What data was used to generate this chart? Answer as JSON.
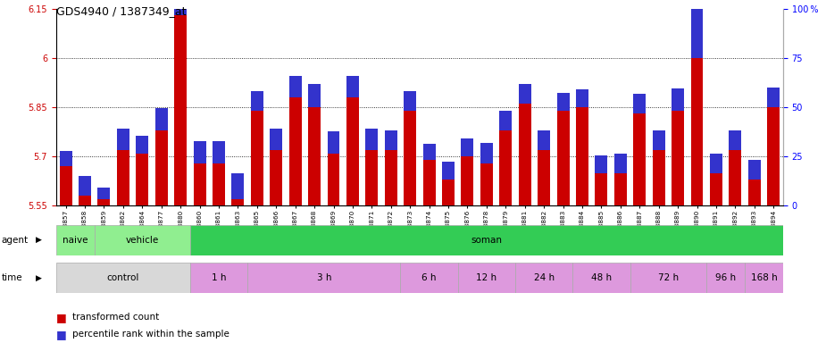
{
  "title": "GDS4940 / 1387349_at",
  "samples": [
    "GSM338857",
    "GSM338858",
    "GSM338859",
    "GSM338862",
    "GSM338864",
    "GSM338877",
    "GSM338880",
    "GSM338860",
    "GSM338861",
    "GSM338863",
    "GSM338865",
    "GSM338866",
    "GSM338867",
    "GSM338868",
    "GSM338869",
    "GSM338870",
    "GSM338871",
    "GSM338872",
    "GSM338873",
    "GSM338874",
    "GSM338875",
    "GSM338876",
    "GSM338878",
    "GSM338879",
    "GSM338881",
    "GSM338882",
    "GSM338883",
    "GSM338884",
    "GSM338885",
    "GSM338886",
    "GSM338887",
    "GSM338888",
    "GSM338889",
    "GSM338890",
    "GSM338891",
    "GSM338892",
    "GSM338893",
    "GSM338894"
  ],
  "transformed_count": [
    5.67,
    5.58,
    5.57,
    5.72,
    5.71,
    5.78,
    6.13,
    5.68,
    5.68,
    5.57,
    5.84,
    5.72,
    5.88,
    5.85,
    5.71,
    5.88,
    5.72,
    5.72,
    5.84,
    5.69,
    5.63,
    5.7,
    5.68,
    5.78,
    5.86,
    5.72,
    5.84,
    5.85,
    5.65,
    5.65,
    5.83,
    5.72,
    5.84,
    6.0,
    5.65,
    5.72,
    5.63,
    5.85
  ],
  "percentile_rank": [
    8,
    10,
    6,
    11,
    9,
    11,
    10,
    11,
    11,
    13,
    10,
    11,
    11,
    12,
    11,
    11,
    11,
    10,
    10,
    8,
    9,
    9,
    10,
    10,
    10,
    10,
    9,
    9,
    9,
    10,
    10,
    10,
    11,
    78,
    10,
    10,
    10,
    10
  ],
  "ylim_left": [
    5.55,
    6.15
  ],
  "ylim_right": [
    0,
    100
  ],
  "yticks_left": [
    5.55,
    5.7,
    5.85,
    6.0,
    6.15
  ],
  "yticks_right": [
    0,
    25,
    50,
    75,
    100
  ],
  "ytick_labels_left": [
    "5.55",
    "5.7",
    "5.85",
    "6",
    "6.15"
  ],
  "ytick_labels_right": [
    "0",
    "25",
    "50",
    "75",
    "100 %"
  ],
  "bar_color_red": "#cc0000",
  "bar_color_blue": "#3333cc",
  "grid_lines": [
    5.7,
    5.85,
    6.0
  ],
  "agent_blocks": [
    {
      "label": "naive",
      "start": 0,
      "end": 2,
      "color": "#90ee90"
    },
    {
      "label": "vehicle",
      "start": 2,
      "end": 7,
      "color": "#90ee90"
    },
    {
      "label": "soman",
      "start": 7,
      "end": 38,
      "color": "#33cc55"
    }
  ],
  "time_blocks": [
    {
      "label": "control",
      "start": 0,
      "end": 7,
      "color": "#d8d8d8"
    },
    {
      "label": "1 h",
      "start": 7,
      "end": 10,
      "color": "#dd99dd"
    },
    {
      "label": "3 h",
      "start": 10,
      "end": 18,
      "color": "#dd99dd"
    },
    {
      "label": "6 h",
      "start": 18,
      "end": 21,
      "color": "#dd99dd"
    },
    {
      "label": "12 h",
      "start": 21,
      "end": 24,
      "color": "#dd99dd"
    },
    {
      "label": "24 h",
      "start": 24,
      "end": 27,
      "color": "#dd99dd"
    },
    {
      "label": "48 h",
      "start": 27,
      "end": 30,
      "color": "#dd99dd"
    },
    {
      "label": "72 h",
      "start": 30,
      "end": 34,
      "color": "#dd99dd"
    },
    {
      "label": "96 h",
      "start": 34,
      "end": 36,
      "color": "#dd99dd"
    },
    {
      "label": "168 h",
      "start": 36,
      "end": 38,
      "color": "#dd99dd"
    }
  ]
}
